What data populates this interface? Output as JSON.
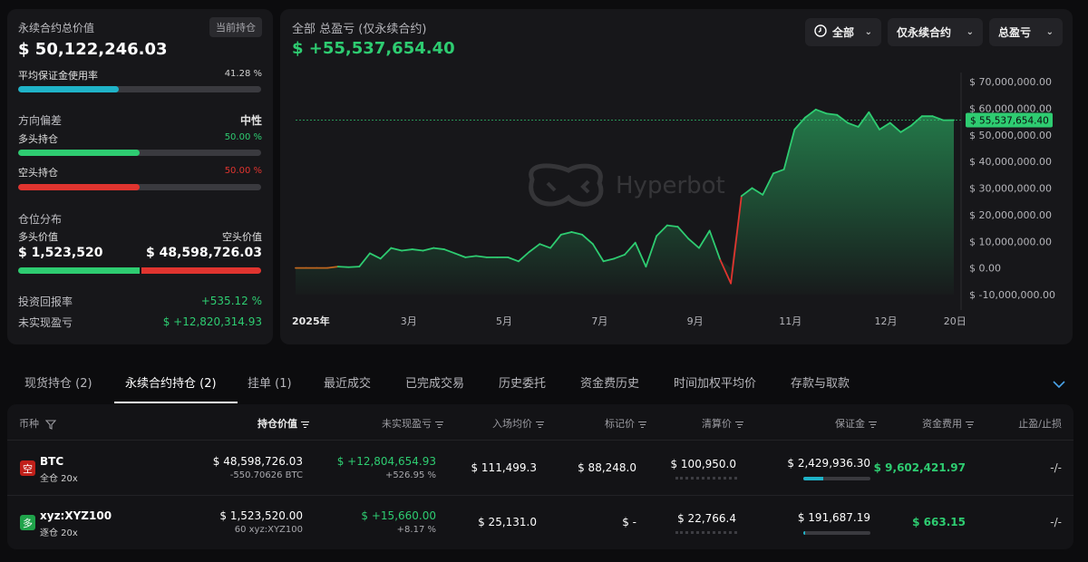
{
  "summary": {
    "total_value_label": "永续合约总价值",
    "current_position_badge": "当前持仓",
    "total_value": "$ 50,122,246.03",
    "avg_margin_label": "平均保证金使用率",
    "avg_margin_value": "41.28 %",
    "avg_margin_fraction": 0.4128,
    "direction_label": "方向偏差",
    "direction_value": "中性",
    "long_label": "多头持仓",
    "long_pct": "50.00 %",
    "long_fraction": 0.5,
    "short_label": "空头持仓",
    "short_pct": "50.00 %",
    "short_fraction": 0.5,
    "distribution_label": "仓位分布",
    "long_value_label": "多头价值",
    "short_value_label": "空头价值",
    "long_value": "$ 1,523,520",
    "short_value": "$ 48,598,726.03",
    "dist_long_fraction": 0.5,
    "roi_label": "投资回报率",
    "roi_value": "+535.12 %",
    "unrealized_label": "未实现盈亏",
    "unrealized_value": "$ +12,820,314.93"
  },
  "chart_header": {
    "title": "全部 总盈亏 (仅永续合约)",
    "value": "$ +55,537,654.40",
    "watermark": "Hyperbot",
    "filters": [
      "全部",
      "仅永续合约",
      "总盈亏"
    ],
    "current_marker": "$ 55,537,654.40"
  },
  "chart_data": {
    "type": "area",
    "title": "",
    "xlabel": "",
    "ylabel": "",
    "x_tick_labels": [
      "2025年",
      "3月",
      "5月",
      "7月",
      "9月",
      "11月",
      "12月",
      "20日"
    ],
    "y_tick_labels": [
      "$ 70,000,000.00",
      "$ 60,000,000.00",
      "$ 50,000,000.00",
      "$ 40,000,000.00",
      "$ 30,000,000.00",
      "$ 20,000,000.00",
      "$ 10,000,000.00",
      "$ 0.00",
      "$ -10,000,000.00"
    ],
    "ylim": [
      -10000000,
      70000000
    ],
    "grid": false,
    "reference_line": 55537654.4,
    "colors": {
      "positive": "#2ecc71",
      "negative": "#e0342f"
    },
    "series": [
      {
        "values": [
          0,
          0,
          0,
          0,
          500000,
          300000,
          500000,
          5500000,
          3500000,
          7500000,
          6500000,
          7000000,
          6500000,
          7500000,
          7000000,
          5500000,
          4000000,
          4500000,
          4000000,
          4000000,
          4000000,
          2500000,
          6000000,
          9000000,
          7500000,
          12500000,
          13500000,
          12500000,
          9000000,
          2500000,
          3500000,
          5000000,
          9500000,
          500000,
          12000000,
          16000000,
          15500000,
          11000000,
          7500000,
          14000000,
          3000000,
          -5800000,
          27000000,
          30000000,
          27500000,
          35500000,
          37000000,
          52000000,
          56500000,
          59500000,
          58000000,
          57500000,
          54500000,
          53000000,
          58500000,
          52000000,
          54500000,
          51000000,
          53500000,
          57000000,
          57000000,
          55500000,
          55537654
        ]
      }
    ]
  },
  "tabs": [
    "现货持仓 (2)",
    "永续合约持仓 (2)",
    "挂单 (1)",
    "最近成交",
    "已完成交易",
    "历史委托",
    "资金费历史",
    "时间加权平均价",
    "存款与取款"
  ],
  "table": {
    "headers": [
      "币种",
      "持仓价值",
      "未实现盈亏",
      "入场均价",
      "标记价",
      "清算价",
      "保证金",
      "资金费用",
      "止盈/止损"
    ],
    "rows": [
      {
        "badge": "空",
        "badge_color": "#c0201a",
        "coin": "BTC",
        "mode": "全仓 20x",
        "value": "$ 48,598,726.03",
        "size": "-550.70626 BTC",
        "upnl": "$ +12,804,654.93",
        "upnl_pct": "+526.95 %",
        "entry": "$ 111,499.3",
        "mark": "$ 88,248.0",
        "liq": "$ 100,950.0",
        "margin": "$ 2,429,936.30",
        "margin_fraction": 0.3,
        "funding": "$ 9,602,421.97",
        "tpsl": "-/-"
      },
      {
        "badge": "多",
        "badge_color": "#1fa34a",
        "coin": "xyz:XYZ100",
        "mode": "逐仓 20x",
        "value": "$ 1,523,520.00",
        "size": "60 xyz:XYZ100",
        "upnl": "$ +15,660.00",
        "upnl_pct": "+8.17 %",
        "entry": "$ 25,131.0",
        "mark": "$ -",
        "liq": "$ 22,766.4",
        "margin": "$ 191,687.19",
        "margin_fraction": 0.03,
        "funding": "$ 663.15",
        "tpsl": "-/-"
      }
    ]
  }
}
